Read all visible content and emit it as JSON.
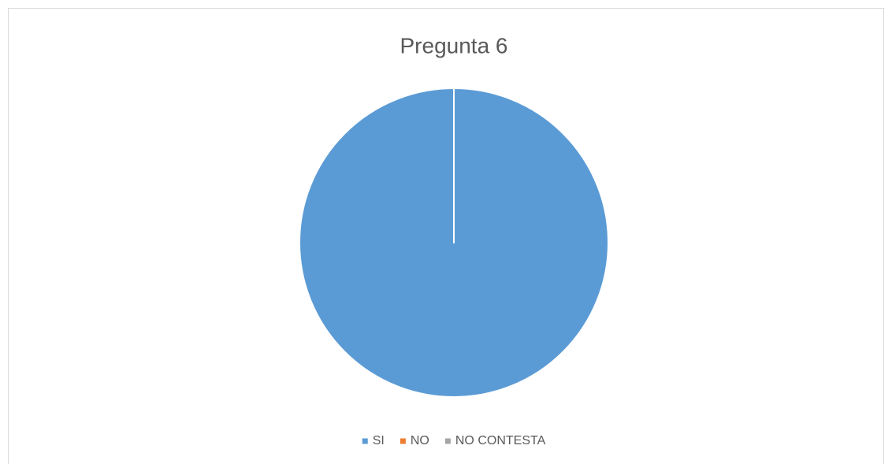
{
  "chart_data": {
    "type": "pie",
    "title": "Pregunta 6",
    "categories": [
      "SI",
      "NO",
      "NO CONTESTA"
    ],
    "values": [
      100,
      0,
      0
    ],
    "colors": [
      "#5b9bd5",
      "#ed7d31",
      "#a5a5a5"
    ],
    "legend": "bottom"
  }
}
